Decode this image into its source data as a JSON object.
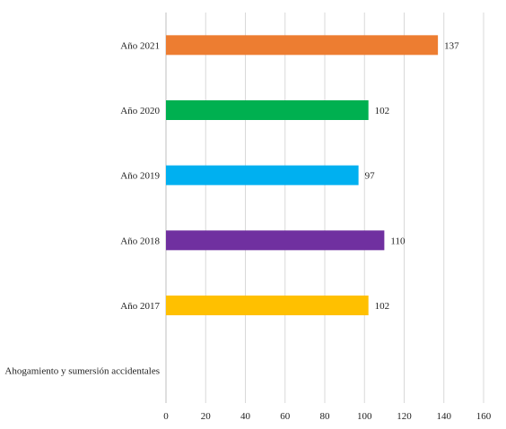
{
  "chart_data": {
    "type": "bar",
    "orientation": "horizontal",
    "categories": [
      "Ahogamiento y sumersión accidentales",
      "Año 2017",
      "Año 2018",
      "Año 2019",
      "Año 2020",
      "Año 2021"
    ],
    "values": [
      null,
      102,
      110,
      97,
      102,
      137
    ],
    "bar_colors": [
      null,
      "#FFC000",
      "#7030A0",
      "#00B0F0",
      "#00B050",
      "#ED7D31"
    ],
    "data_labels": [
      "",
      "102",
      "110",
      "97",
      "102",
      "137"
    ],
    "xlim": [
      0,
      160
    ],
    "xticks": [
      "0",
      "20",
      "40",
      "60",
      "80",
      "100",
      "120",
      "140",
      "160"
    ],
    "grid": true,
    "legend": "none",
    "title": "",
    "xlabel": "",
    "ylabel": ""
  }
}
